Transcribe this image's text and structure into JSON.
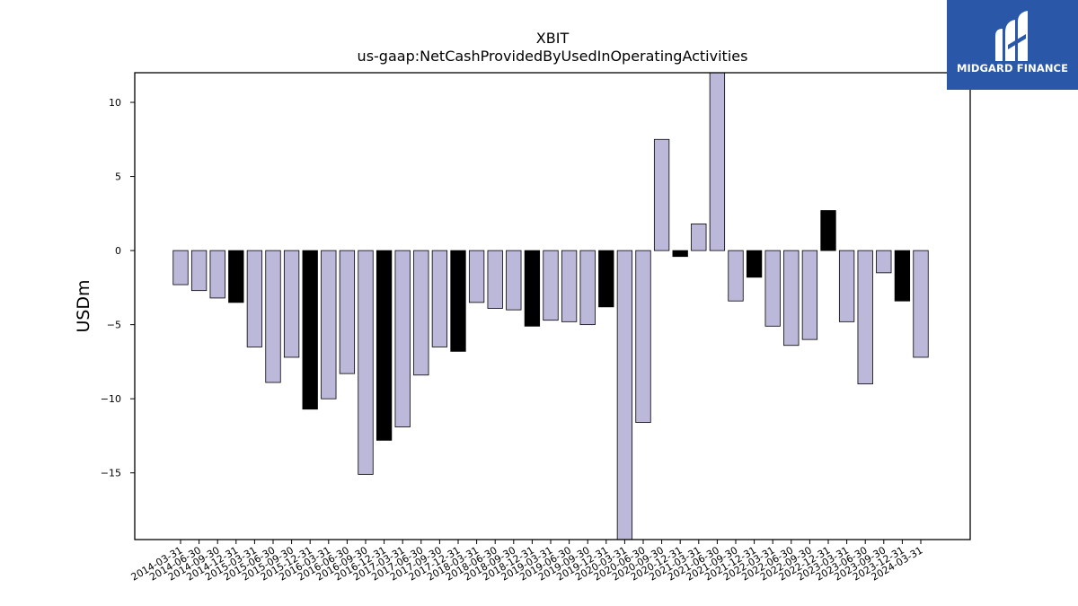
{
  "logo": {
    "text": "MIDGARD FINANCE",
    "background": "#2b57a8"
  },
  "colors": {
    "bar_fill": "#bcb8da",
    "bar_fill_highlight": "#000000",
    "bar_edge": "#000000"
  },
  "chart_data": {
    "type": "bar",
    "title": "XBIT",
    "subtitle": "us-gaap:NetCashProvidedByUsedInOperatingActivities",
    "xlabel": "",
    "ylabel": "USDm",
    "ylim": [
      -19.5,
      12
    ],
    "yticks": [
      10,
      5,
      0,
      -5,
      -10,
      -15
    ],
    "ytick_labels": [
      "10",
      "5",
      "0",
      "−5",
      "−10",
      "−15"
    ],
    "grid": false,
    "categories": [
      "2014-03-31",
      "2014-06-30",
      "2014-09-30",
      "2014-12-31",
      "2015-03-31",
      "2015-06-30",
      "2015-09-30",
      "2015-12-31",
      "2016-03-31",
      "2016-06-30",
      "2016-09-30",
      "2016-12-31",
      "2017-03-31",
      "2017-06-30",
      "2017-09-30",
      "2017-12-31",
      "2018-03-31",
      "2018-06-30",
      "2018-09-30",
      "2018-12-31",
      "2019-03-31",
      "2019-06-30",
      "2019-09-30",
      "2019-12-31",
      "2020-03-31",
      "2020-06-30",
      "2020-09-30",
      "2020-12-31",
      "2021-03-31",
      "2021-06-30",
      "2021-09-30",
      "2021-12-31",
      "2022-03-31",
      "2022-06-30",
      "2022-09-30",
      "2022-12-31",
      "2023-03-31",
      "2023-06-30",
      "2023-09-30",
      "2023-12-31",
      "2024-03-31"
    ],
    "values": [
      -2.3,
      -2.7,
      -3.2,
      -3.5,
      -6.5,
      -8.9,
      -7.2,
      -10.7,
      -10.0,
      -8.3,
      -15.1,
      -12.8,
      -11.9,
      -8.4,
      -6.5,
      -6.8,
      -3.5,
      -3.9,
      -4.0,
      -5.1,
      -4.7,
      -4.8,
      -5.0,
      -3.8,
      -19.5,
      -11.6,
      7.5,
      -0.4,
      1.8,
      12.0,
      -3.4,
      -1.8,
      -5.1,
      -6.4,
      -6.0,
      2.7,
      -4.8,
      -9.0,
      -1.5,
      -3.4,
      -7.2
    ],
    "highlighted": [
      false,
      false,
      false,
      true,
      false,
      false,
      false,
      true,
      false,
      false,
      false,
      true,
      false,
      false,
      false,
      true,
      false,
      false,
      false,
      true,
      false,
      false,
      false,
      true,
      false,
      false,
      false,
      true,
      false,
      false,
      false,
      true,
      false,
      false,
      false,
      true,
      false,
      false,
      false,
      true,
      false
    ]
  }
}
